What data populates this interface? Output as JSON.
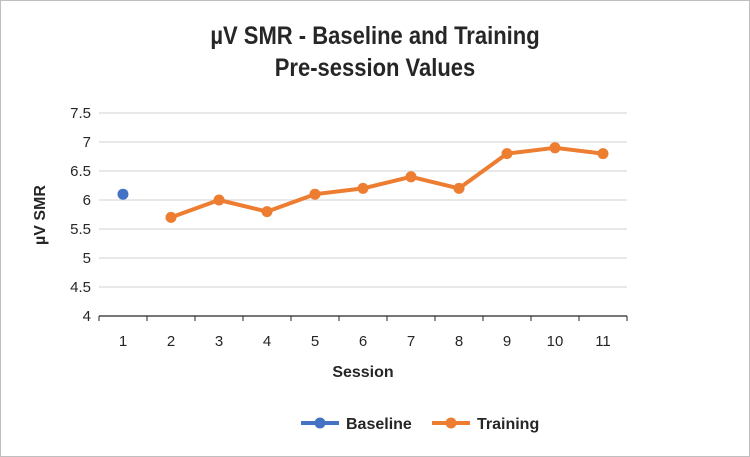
{
  "chart_data": {
    "type": "line",
    "title": "µV SMR - Baseline and Training Pre-session Values",
    "title_lines": [
      "µV SMR - Baseline and Training",
      "Pre-session Values"
    ],
    "xlabel": "Session",
    "ylabel": "µV SMR",
    "categories": [
      "1",
      "2",
      "3",
      "4",
      "5",
      "6",
      "7",
      "8",
      "9",
      "10",
      "11"
    ],
    "ylim": [
      4,
      7.5
    ],
    "yticks": [
      "4",
      "4.5",
      "5",
      "5.5",
      "6",
      "6.5",
      "7",
      "7.5"
    ],
    "grid": true,
    "legend": "bottom",
    "series": [
      {
        "name": "Baseline",
        "color": "#4472c4",
        "values": [
          6.1,
          null,
          null,
          null,
          null,
          null,
          null,
          null,
          null,
          null,
          null
        ]
      },
      {
        "name": "Training",
        "color": "#ed7d31",
        "values": [
          null,
          5.7,
          6.0,
          5.8,
          6.1,
          6.2,
          6.4,
          6.2,
          6.8,
          6.9,
          6.8
        ]
      }
    ]
  }
}
